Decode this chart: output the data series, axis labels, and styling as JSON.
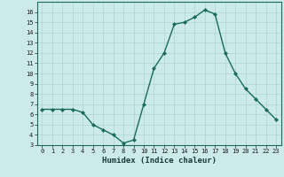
{
  "x": [
    0,
    1,
    2,
    3,
    4,
    5,
    6,
    7,
    8,
    9,
    10,
    11,
    12,
    13,
    14,
    15,
    16,
    17,
    18,
    19,
    20,
    21,
    22,
    23
  ],
  "y": [
    6.5,
    6.5,
    6.5,
    6.5,
    6.2,
    5.0,
    4.5,
    4.0,
    3.2,
    3.5,
    7.0,
    10.5,
    12.0,
    14.8,
    15.0,
    15.5,
    16.2,
    15.8,
    12.0,
    10.0,
    8.5,
    7.5,
    6.5,
    5.5
  ],
  "line_color": "#1a6b5a",
  "marker": "D",
  "marker_size": 2,
  "bg_color": "#cceaea",
  "grid_color": "#aad4d4",
  "xlabel": "Humidex (Indice chaleur)",
  "xlim": [
    -0.5,
    23.5
  ],
  "ylim": [
    3,
    17
  ],
  "yticks": [
    3,
    4,
    5,
    6,
    7,
    8,
    9,
    10,
    11,
    12,
    13,
    14,
    15,
    16
  ],
  "xticks": [
    0,
    1,
    2,
    3,
    4,
    5,
    6,
    7,
    8,
    9,
    10,
    11,
    12,
    13,
    14,
    15,
    16,
    17,
    18,
    19,
    20,
    21,
    22,
    23
  ],
  "tick_fontsize": 5,
  "xlabel_fontsize": 6.5,
  "linewidth": 1.0
}
